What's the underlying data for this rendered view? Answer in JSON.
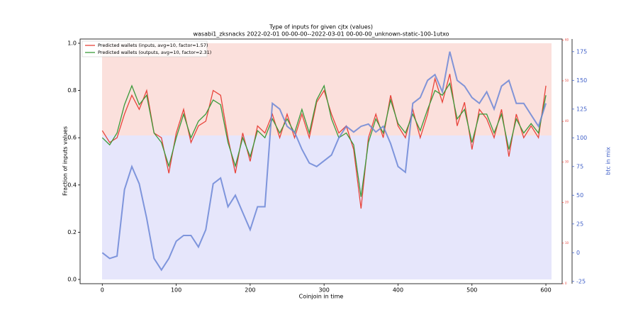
{
  "chart_data": {
    "type": "line",
    "title": "Type of inputs for given cjtx (values)",
    "subtitle": "wasabi1_zksnacks 2022-02-01 00-00-00--2022-03-01 00-00-00_unknown-static-100-1utxo",
    "x_label": "Coinjoin in time",
    "y_label": "Fraction of inputs values",
    "y3_label": "btc in mix",
    "legend": "upper left",
    "x": [
      0,
      10,
      20,
      30,
      40,
      50,
      60,
      70,
      80,
      90,
      100,
      110,
      120,
      130,
      140,
      150,
      160,
      170,
      180,
      190,
      200,
      210,
      220,
      230,
      240,
      250,
      260,
      270,
      280,
      290,
      300,
      310,
      320,
      330,
      340,
      350,
      360,
      370,
      380,
      390,
      400,
      410,
      420,
      430,
      440,
      450,
      460,
      470,
      480,
      490,
      500,
      510,
      520,
      530,
      540,
      550,
      560,
      570,
      580,
      590,
      600
    ],
    "xlim": [
      -30,
      622
    ],
    "xticks": [
      0,
      100,
      200,
      300,
      400,
      500,
      600
    ],
    "ylim": [
      -0.018,
      1.018
    ],
    "yticks": [
      {
        "value": 0,
        "label": "0.0"
      },
      {
        "value": 0.2,
        "label": "0.2"
      },
      {
        "value": 0.4,
        "label": "0.4"
      },
      {
        "value": 0.6,
        "label": "0.6"
      },
      {
        "value": 0.8,
        "label": "0.8"
      },
      {
        "value": 1,
        "label": "1.0"
      }
    ],
    "y2lim": [
      0,
      60.3
    ],
    "y2ticks": [
      0,
      10,
      20,
      30,
      40,
      50,
      60
    ],
    "y3lim": [
      -27,
      186
    ],
    "y3ticks": [
      -25,
      0,
      25,
      50,
      75,
      100,
      125,
      150,
      175
    ],
    "series": [
      {
        "name": "Predicted wallets (inputs, avg=10, factor=1.57)",
        "color": "#e8453c",
        "values": [
          0.63,
          0.58,
          0.6,
          0.7,
          0.78,
          0.72,
          0.8,
          0.62,
          0.6,
          0.45,
          0.62,
          0.72,
          0.58,
          0.65,
          0.67,
          0.8,
          0.78,
          0.6,
          0.45,
          0.62,
          0.5,
          0.65,
          0.62,
          0.7,
          0.6,
          0.7,
          0.6,
          0.7,
          0.6,
          0.75,
          0.8,
          0.7,
          0.62,
          0.65,
          0.55,
          0.3,
          0.6,
          0.7,
          0.6,
          0.78,
          0.65,
          0.6,
          0.72,
          0.6,
          0.7,
          0.85,
          0.75,
          0.87,
          0.65,
          0.75,
          0.55,
          0.72,
          0.68,
          0.6,
          0.72,
          0.52,
          0.7,
          0.6,
          0.65,
          0.6,
          0.82
        ]
      },
      {
        "name": "Predicted wallets (outputs, avg=10, factor=2.31)",
        "color": "#3a9a3a",
        "values": [
          0.6,
          0.57,
          0.62,
          0.74,
          0.82,
          0.74,
          0.78,
          0.62,
          0.58,
          0.48,
          0.6,
          0.7,
          0.6,
          0.67,
          0.7,
          0.76,
          0.74,
          0.58,
          0.48,
          0.6,
          0.52,
          0.63,
          0.6,
          0.68,
          0.62,
          0.68,
          0.62,
          0.72,
          0.62,
          0.76,
          0.82,
          0.68,
          0.6,
          0.62,
          0.57,
          0.35,
          0.58,
          0.68,
          0.62,
          0.76,
          0.66,
          0.62,
          0.7,
          0.63,
          0.72,
          0.8,
          0.78,
          0.83,
          0.68,
          0.72,
          0.58,
          0.7,
          0.7,
          0.62,
          0.7,
          0.55,
          0.68,
          0.62,
          0.66,
          0.62,
          0.78
        ]
      },
      {
        "name": "btc in mix",
        "color": "#6b86d6",
        "axis": "y3",
        "values": [
          0,
          -5,
          -3,
          55,
          75,
          60,
          30,
          -5,
          -15,
          -5,
          10,
          15,
          15,
          5,
          20,
          60,
          65,
          40,
          50,
          35,
          20,
          40,
          40,
          130,
          125,
          110,
          105,
          90,
          78,
          75,
          80,
          85,
          100,
          110,
          105,
          110,
          112,
          105,
          110,
          95,
          75,
          70,
          130,
          135,
          150,
          155,
          140,
          175,
          150,
          145,
          135,
          130,
          140,
          125,
          145,
          150,
          130,
          130,
          120,
          110,
          130
        ]
      }
    ]
  }
}
